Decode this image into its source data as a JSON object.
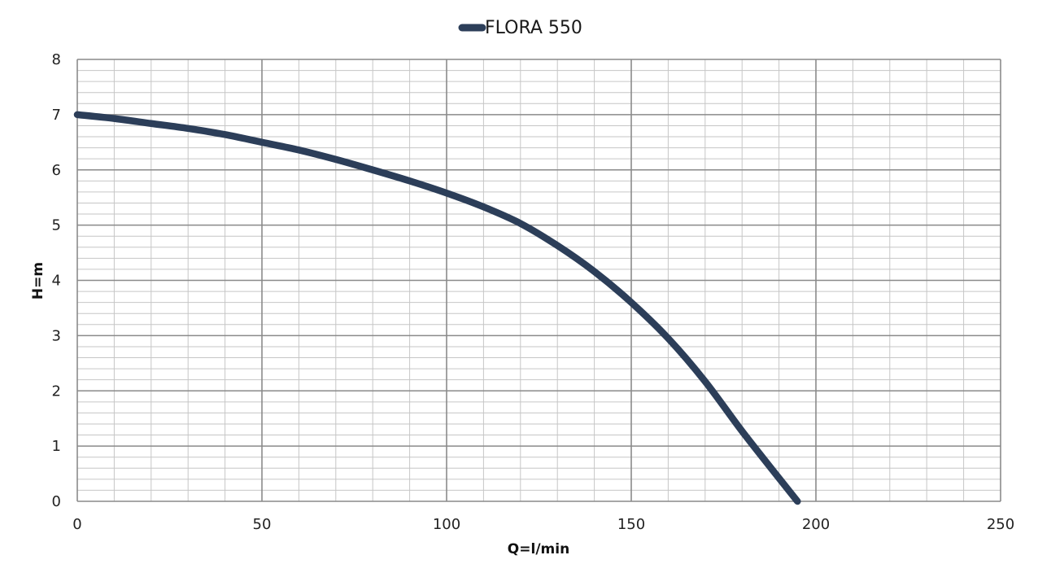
{
  "chart_data": {
    "type": "line",
    "xlabel": "Q=l/min",
    "ylabel": "H=m",
    "xlim": [
      0,
      250
    ],
    "ylim": [
      0,
      8
    ],
    "x_ticks": [
      "0",
      "50",
      "100",
      "150",
      "200",
      "250"
    ],
    "y_ticks": [
      "0",
      "1",
      "2",
      "3",
      "4",
      "5",
      "6",
      "7",
      "8"
    ],
    "x_major_step": 50,
    "x_minor_step": 10,
    "y_major_step": 1,
    "y_minor_step": 0.2,
    "grid": true,
    "legend_position": "top-center",
    "series": [
      {
        "name": "FLORA 550",
        "color": "#2c3e59",
        "x": [
          0,
          10,
          20,
          30,
          40,
          50,
          60,
          70,
          80,
          90,
          100,
          110,
          120,
          130,
          140,
          150,
          160,
          170,
          180,
          190,
          195
        ],
        "y": [
          7.0,
          6.93,
          6.84,
          6.75,
          6.64,
          6.5,
          6.36,
          6.19,
          6.0,
          5.8,
          5.58,
          5.33,
          5.03,
          4.63,
          4.16,
          3.6,
          2.95,
          2.17,
          1.27,
          0.42,
          0.0
        ]
      }
    ]
  }
}
